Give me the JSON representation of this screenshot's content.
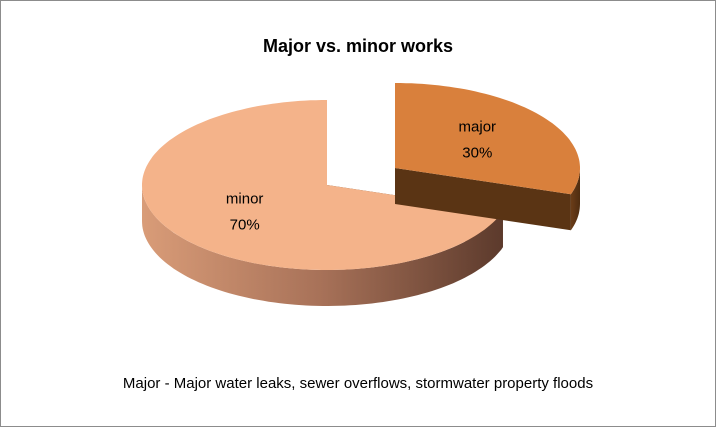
{
  "chart_data": {
    "type": "pie",
    "title": "Major vs. minor works",
    "categories": [
      "major",
      "minor"
    ],
    "values": [
      30,
      70
    ],
    "value_labels": [
      "30%",
      "70%"
    ],
    "colors": [
      "#d9803c",
      "#f4b38a"
    ],
    "explode": [
      true,
      false
    ],
    "note": "Major - Major water leaks, sewer overflows, stormwater property floods"
  }
}
